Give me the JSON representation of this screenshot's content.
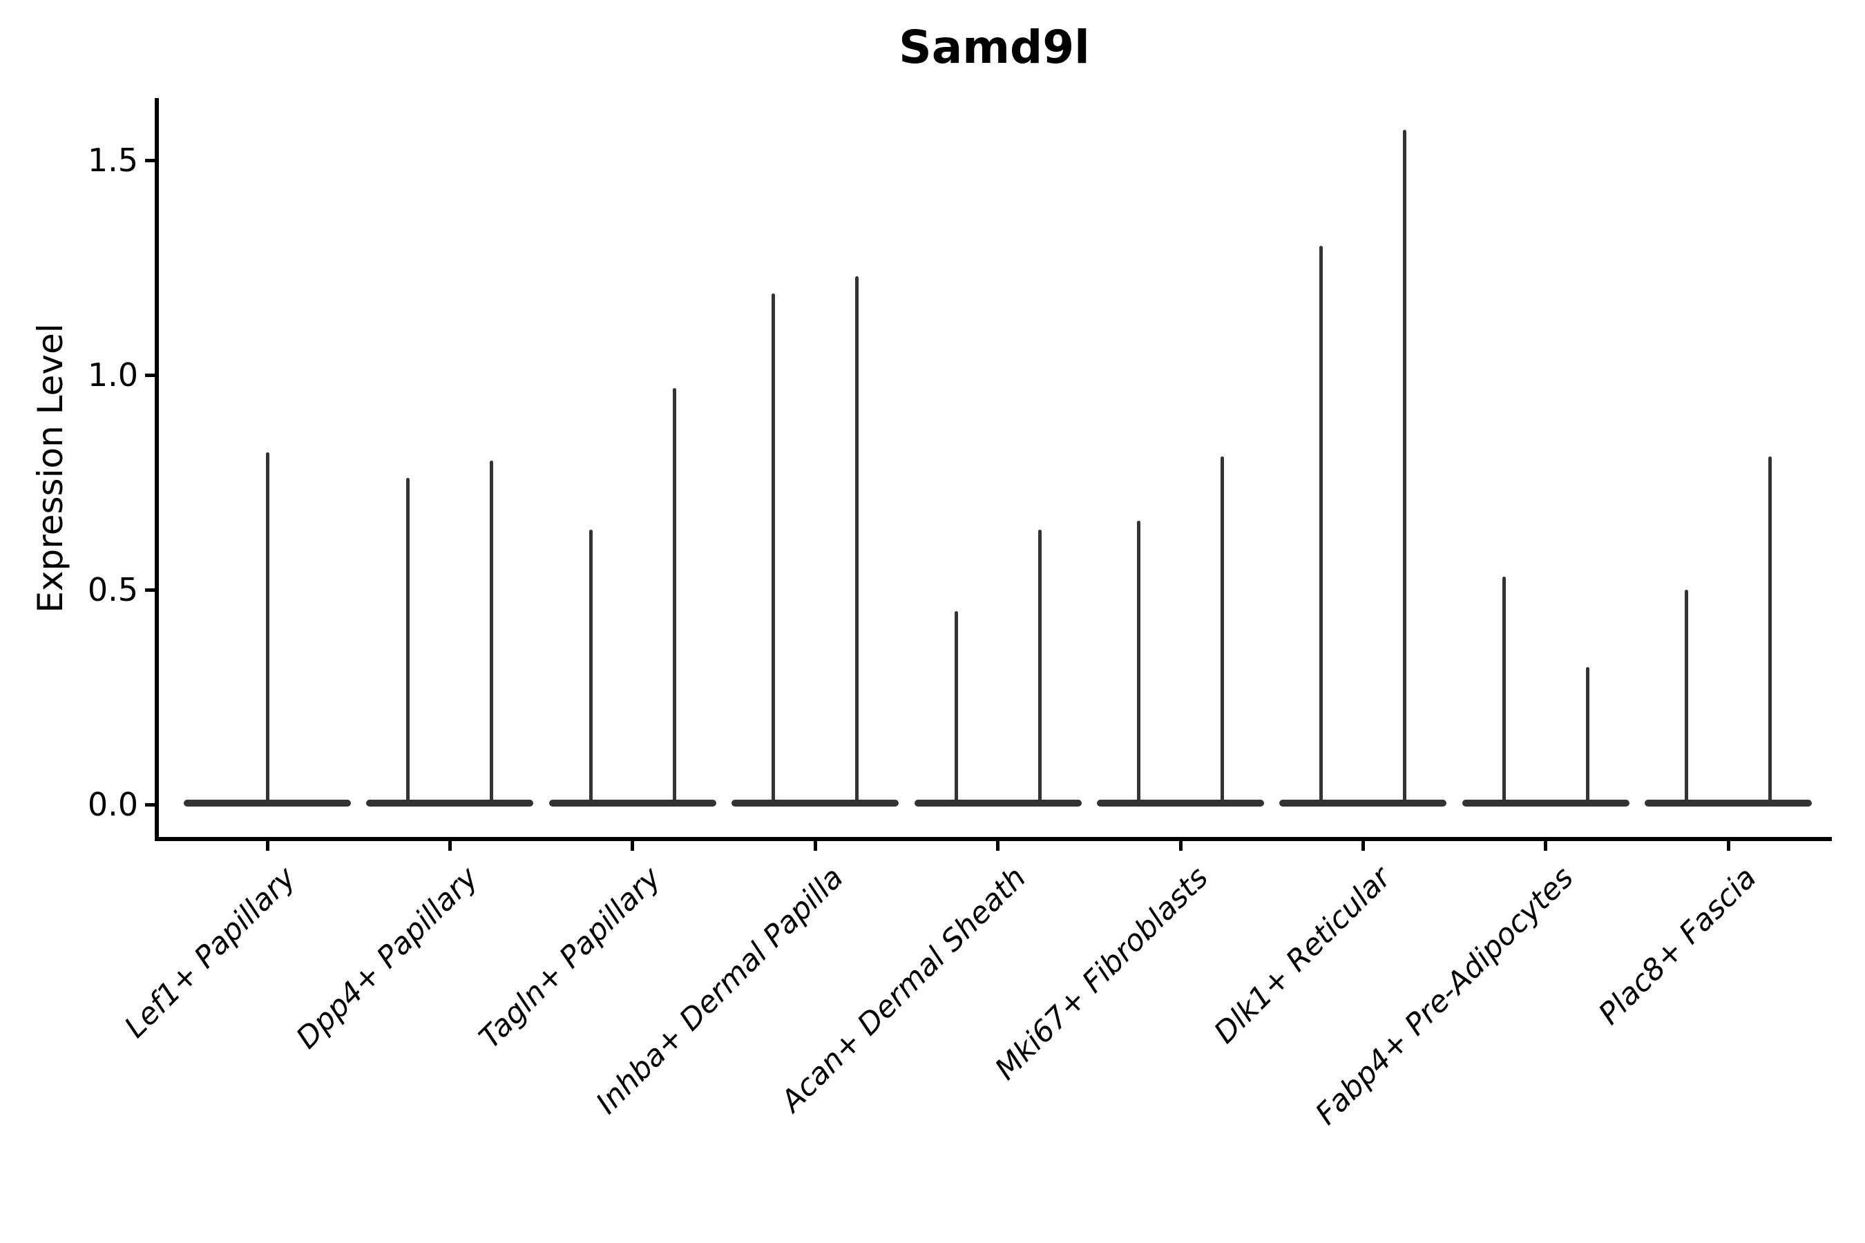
{
  "title": "Samd9l",
  "y_axis_label": "Expression Level",
  "colors": {
    "spike": "#333333",
    "violin_body": "#333333",
    "axis": "#000000",
    "text": "#000000",
    "background": "#ffffff"
  },
  "chart_data": {
    "type": "violin",
    "title": "Samd9l",
    "xlabel": "",
    "ylabel": "Expression Level",
    "ylim": [
      -0.08,
      1.65
    ],
    "grid": false,
    "legend": false,
    "ytick_labels": [
      "0.0",
      "0.5",
      "1.0",
      "1.5"
    ],
    "ytick_values": [
      0.0,
      0.5,
      1.0,
      1.5
    ],
    "categories": [
      "Lef1+ Papillary",
      "Dpp4+ Papillary",
      "Tagln+ Papillary",
      "Inhba+ Dermal Papilla",
      "Acan+ Dermal Sheath",
      "Mki67+ Fibroblasts",
      "Dlk1+ Reticular",
      "Fabp4+ Pre-Adipocytes",
      "Plac8+ Fascia"
    ],
    "violins": [
      {
        "category": "Lef1+ Papillary",
        "spike_max_values": [
          0.82
        ]
      },
      {
        "category": "Dpp4+ Papillary",
        "spike_max_values": [
          0.76,
          0.8
        ]
      },
      {
        "category": "Tagln+ Papillary",
        "spike_max_values": [
          0.64,
          0.97
        ]
      },
      {
        "category": "Inhba+ Dermal Papilla",
        "spike_max_values": [
          1.19,
          1.23
        ]
      },
      {
        "category": "Acan+ Dermal Sheath",
        "spike_max_values": [
          0.45,
          0.64
        ]
      },
      {
        "category": "Mki67+ Fibroblasts",
        "spike_max_values": [
          0.66,
          0.81
        ]
      },
      {
        "category": "Dlk1+ Reticular",
        "spike_max_values": [
          1.3,
          1.57
        ]
      },
      {
        "category": "Fabp4+ Pre-Adipocytes",
        "spike_max_values": [
          0.53,
          0.32
        ]
      },
      {
        "category": "Plac8+ Fascia",
        "spike_max_values": [
          0.5,
          0.81
        ]
      }
    ],
    "baseline_value": 0.0
  }
}
